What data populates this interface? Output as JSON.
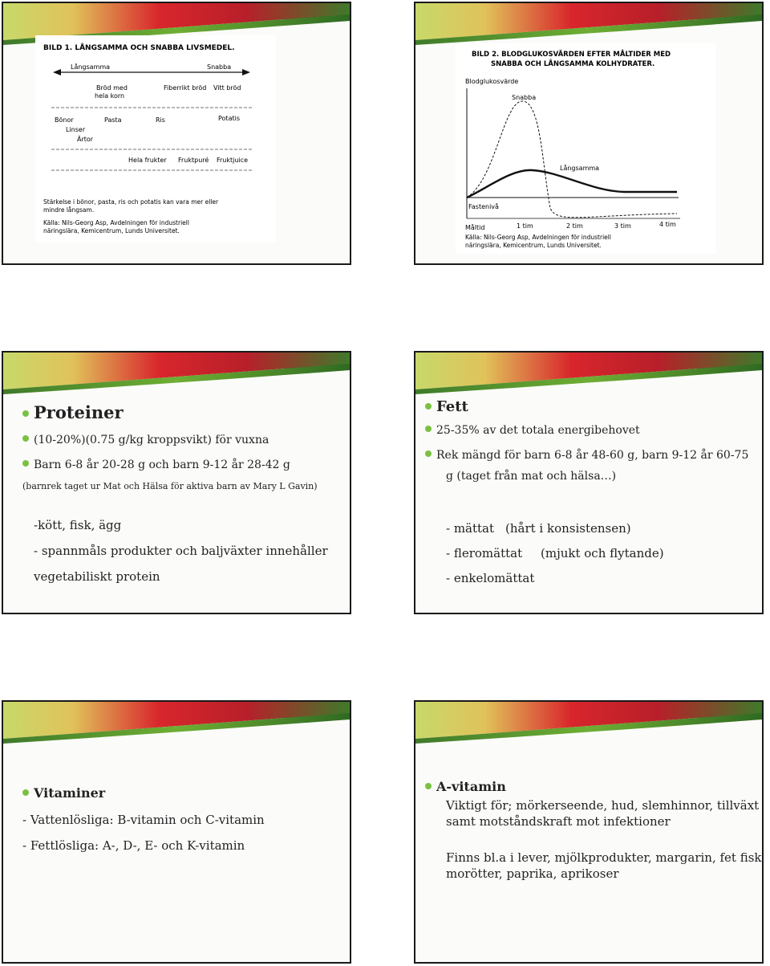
{
  "slide1": {
    "title": "BILD 1. LÅNGSAMMA OCH SNABBA LIVSMEDEL.",
    "langsamma": "Långsamma",
    "snabba": "Snabba",
    "row1": [
      "Bröd med",
      "hela korn",
      "Fiberrikt bröd",
      "Vitt bröd"
    ],
    "row2": [
      "Bönor",
      "Linser",
      "Ärtor",
      "Pasta",
      "Ris",
      "Potatis"
    ],
    "row3": [
      "Hela frukter",
      "Fruktpuré",
      "Fruktjuice"
    ],
    "note1": "Stärkelse i bönor, pasta, ris och potatis kan vara mer eller",
    "note2": "mindre långsam.",
    "src1": "Källa: Nils-Georg Asp, Avdelningen för industriell",
    "src2": "näringslära, Kemicentrum, Lunds Universitet."
  },
  "slide2": {
    "title1": "BILD 2. BLODGLUKOSVÄRDEN EFTER MÅLTIDER MED",
    "title2": "SNABBA OCH LÅNGSAMMA KOLHYDRATER.",
    "ylabel": "Blodglukosvärde",
    "snabba": "Snabba",
    "langsamma": "Långsamma",
    "fasteniva": "Fastenivå",
    "x_ticks": [
      "Måltid",
      "1 tim",
      "2 tim",
      "3 tim",
      "4 tim"
    ],
    "src1": "Källa: Nils-Georg Asp, Avdelningen för industriell",
    "src2": "näringslära, Kemicentrum, Lunds Universitet."
  },
  "slide3": {
    "title": "Proteiner",
    "b1": "(10-20%)(0.75 g/kg kroppsvikt) för vuxna",
    "b2": "Barn 6-8 år 20-28 g och barn 9-12 år 28-42 g",
    "note": "(barnrek taget ur Mat och Hälsa för aktiva barn av Mary L Gavin)",
    "l1": "-kött, fisk, ägg",
    "l2": "- spannmåls produkter och baljväxter innehåller",
    "l3": "vegetabiliskt protein"
  },
  "slide4": {
    "title": "Fett",
    "b1": "25-35% av det totala energibehovet",
    "b2a": "Rek mängd för barn 6-8 år 48-60 g, barn 9-12 år 60-75",
    "b2b": "g (taget från mat och hälsa…)",
    "l1a": "- mättat",
    "l1b": "(hårt i konsistensen)",
    "l2a": "- fleromättat",
    "l2b": "(mjukt och flytande)",
    "l3": "- enkelomättat"
  },
  "slide5": {
    "title": "Vitaminer",
    "l1": "- Vattenlösliga: B-vitamin och C-vitamin",
    "l2": "- Fettlösliga: A-, D-, E- och K-vitamin"
  },
  "slide6": {
    "title": "A-vitamin",
    "p1a": "Viktigt för; mörkerseende, hud, slemhinnor, tillväxt",
    "p1b": "samt motståndskraft mot infektioner",
    "p2a": "Finns bl.a i lever, mjölkprodukter, margarin, fet fisk,",
    "p2b": "morötter, paprika, aprikoser"
  },
  "colors": {
    "bullet": "#7ac142",
    "banner_red": "#d7262c",
    "banner_green": "#6fae34"
  }
}
